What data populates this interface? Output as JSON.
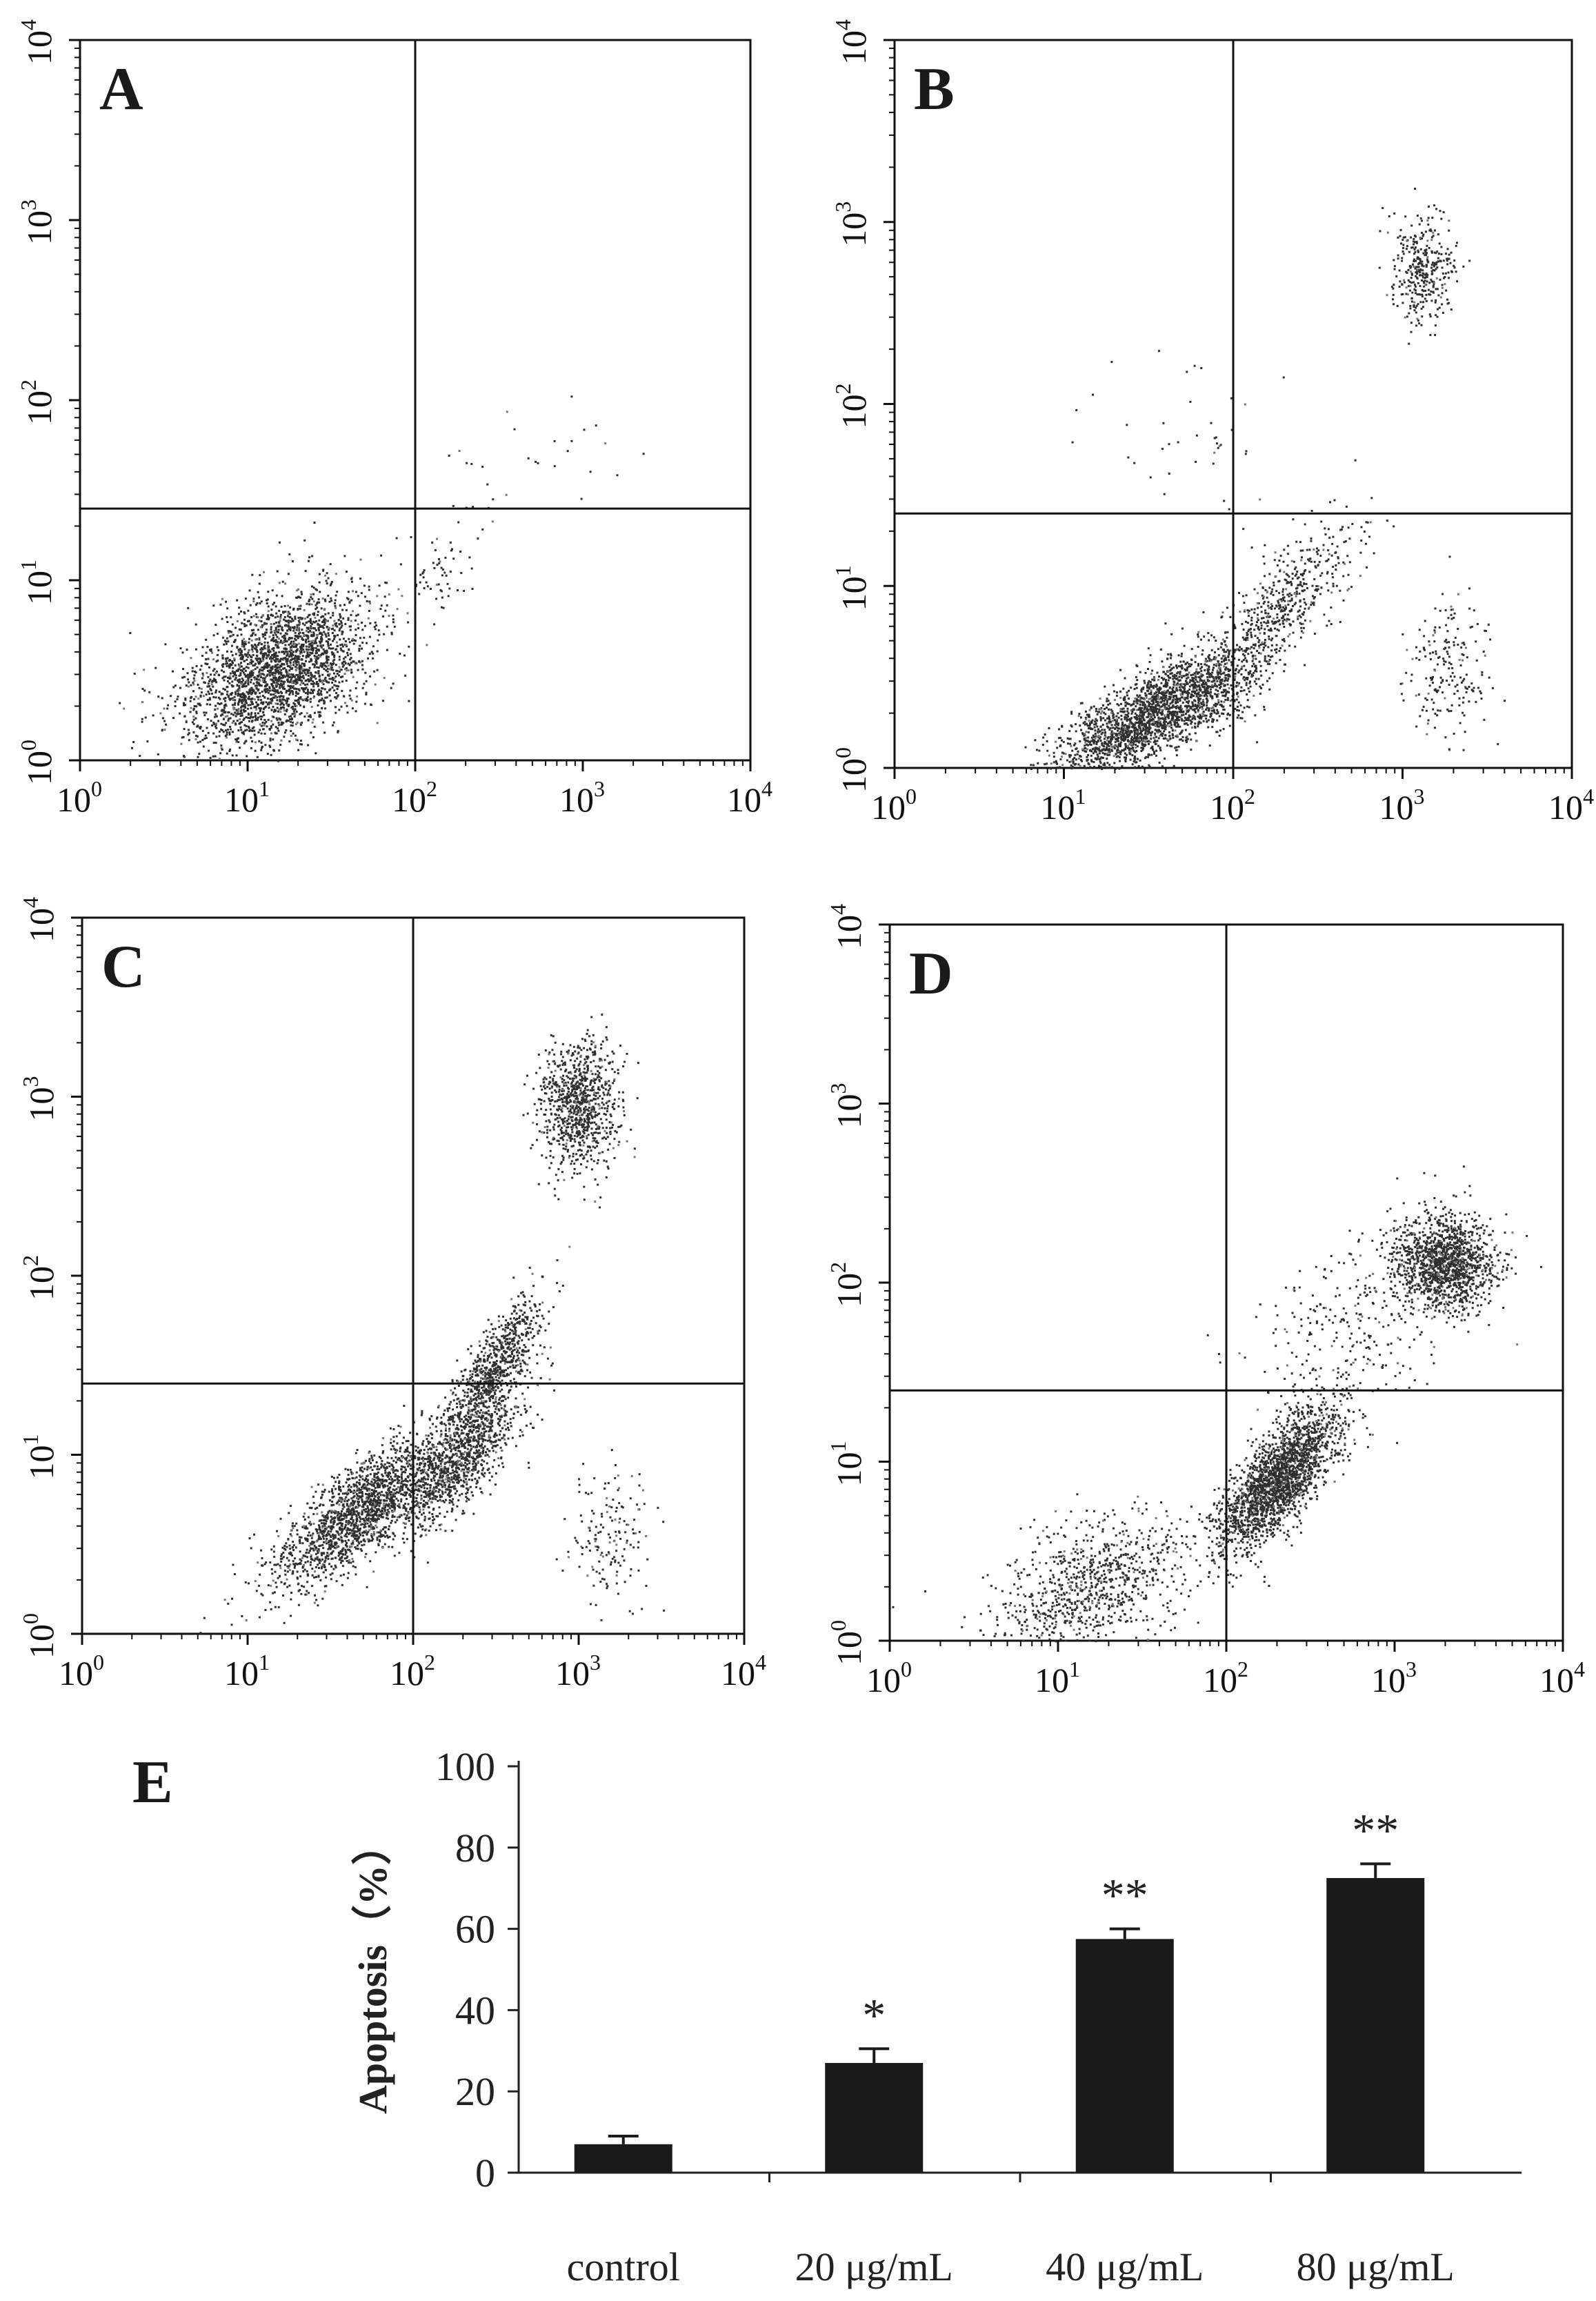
{
  "figure": {
    "scatter_panels": [
      {
        "label": "A"
      },
      {
        "label": "B"
      },
      {
        "label": "C"
      },
      {
        "label": "D"
      }
    ],
    "bar_panel": {
      "label": "E"
    }
  },
  "chart_data": [
    {
      "type": "scatter",
      "panel": "A",
      "scale": "log",
      "xlim": [
        1,
        10000
      ],
      "ylim": [
        1,
        10000
      ],
      "x_ticks": [
        "10^0",
        "10^1",
        "10^2",
        "10^3",
        "10^4"
      ],
      "y_ticks": [
        "10^0",
        "10^1",
        "10^2",
        "10^3",
        "10^4"
      ],
      "gate": {
        "x": 100,
        "y": 25
      },
      "populations": [
        {
          "center": [
            15,
            3.2
          ],
          "spread": [
            0.28,
            0.22
          ],
          "count": 2600,
          "corr": 0.45
        },
        {
          "center": [
            150,
            12
          ],
          "spread": [
            0.12,
            0.15
          ],
          "count": 60,
          "corr": 0.6
        },
        {
          "center": [
            600,
            50
          ],
          "spread": [
            0.35,
            0.12
          ],
          "count": 25,
          "corr": 0.0
        }
      ],
      "quadrant_percent": {
        "upper_left": 0.3,
        "upper_right": 0.7,
        "lower_left": 97.5,
        "lower_right": 1.5
      }
    },
    {
      "type": "scatter",
      "panel": "B",
      "scale": "log",
      "xlim": [
        1,
        10000
      ],
      "ylim": [
        1,
        10000
      ],
      "x_ticks": [
        "10^0",
        "10^1",
        "10^2",
        "10^3",
        "10^4"
      ],
      "y_ticks": [
        "10^0",
        "10^1",
        "10^2",
        "10^3",
        "10^4"
      ],
      "gate": {
        "x": 100,
        "y": 25
      },
      "populations": [
        {
          "center": [
            35,
            2.0
          ],
          "spread": [
            0.3,
            0.18
          ],
          "count": 2400,
          "corr": 0.75
        },
        {
          "center": [
            200,
            8
          ],
          "spread": [
            0.2,
            0.2
          ],
          "count": 500,
          "corr": 0.7
        },
        {
          "center": [
            1300,
            550
          ],
          "spread": [
            0.1,
            0.15
          ],
          "count": 350,
          "corr": 0.0
        },
        {
          "center": [
            1800,
            3.5
          ],
          "spread": [
            0.12,
            0.2
          ],
          "count": 200,
          "corr": 0.0
        },
        {
          "center": [
            60,
            60
          ],
          "spread": [
            0.3,
            0.2
          ],
          "count": 40,
          "corr": 0.0
        }
      ],
      "quadrant_percent": {
        "upper_left": 1.0,
        "upper_right": 10.5,
        "lower_left": 70.0,
        "lower_right": 18.5
      }
    },
    {
      "type": "scatter",
      "panel": "C",
      "scale": "log",
      "xlim": [
        1,
        10000
      ],
      "ylim": [
        1,
        10000
      ],
      "x_ticks": [
        "10^0",
        "10^1",
        "10^2",
        "10^3",
        "10^4"
      ],
      "y_ticks": [
        "10^0",
        "10^1",
        "10^2",
        "10^3",
        "10^4"
      ],
      "gate": {
        "x": 100,
        "y": 25
      },
      "populations": [
        {
          "center": [
            50,
            5
          ],
          "spread": [
            0.28,
            0.22
          ],
          "count": 1900,
          "corr": 0.8
        },
        {
          "center": [
            200,
            10
          ],
          "spread": [
            0.18,
            0.2
          ],
          "count": 900,
          "corr": 0.75
        },
        {
          "center": [
            300,
            30
          ],
          "spread": [
            0.15,
            0.2
          ],
          "count": 800,
          "corr": 0.8
        },
        {
          "center": [
            1000,
            900
          ],
          "spread": [
            0.12,
            0.18
          ],
          "count": 900,
          "corr": 0.0
        },
        {
          "center": [
            1500,
            3.5
          ],
          "spread": [
            0.13,
            0.2
          ],
          "count": 160,
          "corr": 0.0
        }
      ],
      "quadrant_percent": {
        "upper_left": 0.8,
        "upper_right": 26.0,
        "lower_left": 52.0,
        "lower_right": 21.2
      }
    },
    {
      "type": "scatter",
      "panel": "D",
      "scale": "log",
      "xlim": [
        1,
        10000
      ],
      "ylim": [
        1,
        10000
      ],
      "x_ticks": [
        "10^0",
        "10^1",
        "10^2",
        "10^3",
        "10^4"
      ],
      "y_ticks": [
        "10^0",
        "10^1",
        "10^2",
        "10^3",
        "10^4"
      ],
      "gate": {
        "x": 100,
        "y": 25
      },
      "populations": [
        {
          "center": [
            200,
            8
          ],
          "spread": [
            0.18,
            0.2
          ],
          "count": 2200,
          "corr": 0.75
        },
        {
          "center": [
            15,
            2
          ],
          "spread": [
            0.3,
            0.2
          ],
          "count": 900,
          "corr": 0.5
        },
        {
          "center": [
            2000,
            130
          ],
          "spread": [
            0.15,
            0.13
          ],
          "count": 1400,
          "corr": 0.0
        },
        {
          "center": [
            600,
            60
          ],
          "spread": [
            0.3,
            0.3
          ],
          "count": 300,
          "corr": 0.5
        }
      ],
      "quadrant_percent": {
        "upper_left": 0.4,
        "upper_right": 35.0,
        "lower_left": 25.0,
        "lower_right": 39.6
      }
    },
    {
      "type": "bar",
      "panel": "E",
      "categories": [
        "control",
        "20 μg/mL",
        "40 μg/mL",
        "80 μg/mL"
      ],
      "values": [
        7,
        27,
        57.5,
        72.5
      ],
      "errors": [
        2,
        3.5,
        2.5,
        3.5
      ],
      "significance": [
        "",
        "*",
        "**",
        "**"
      ],
      "ylabel": "Apoptosis（%）",
      "ylim": [
        0,
        100
      ],
      "y_ticks": [
        0,
        20,
        40,
        60,
        80,
        100
      ],
      "bar_color": "#1a1a1a"
    }
  ]
}
